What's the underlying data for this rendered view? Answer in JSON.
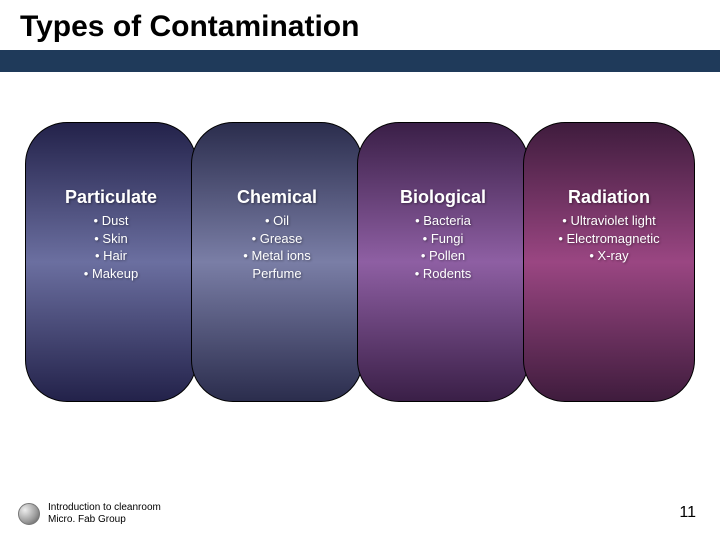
{
  "title": "Types of Contamination",
  "columns": [
    {
      "title": "Particulate",
      "items": [
        "• Dust",
        "• Skin",
        "• Hair",
        "• Makeup"
      ],
      "gradient_top": "#23224a",
      "gradient_mid": "#6b6fa0",
      "gradient_bot": "#23224a"
    },
    {
      "title": "Chemical",
      "items": [
        "• Oil",
        "• Grease",
        "• Metal ions",
        "Perfume"
      ],
      "gradient_top": "#2b2d4d",
      "gradient_mid": "#7a7ea6",
      "gradient_bot": "#2b2d4d"
    },
    {
      "title": "Biological",
      "items": [
        "• Bacteria",
        "• Fungi",
        "• Pollen",
        "• Rodents"
      ],
      "gradient_top": "#3a1f47",
      "gradient_mid": "#8e5fa3",
      "gradient_bot": "#3a1f47"
    },
    {
      "title": "Radiation",
      "items": [
        "• Ultraviolet light",
        "• Electromagnetic",
        "• X-ray"
      ],
      "gradient_top": "#3f1c3d",
      "gradient_mid": "#9a4682",
      "gradient_bot": "#3f1c3d"
    }
  ],
  "footer_line1": "Introduction to cleanroom",
  "footer_line2": "Micro. Fab Group",
  "page_number": "11"
}
